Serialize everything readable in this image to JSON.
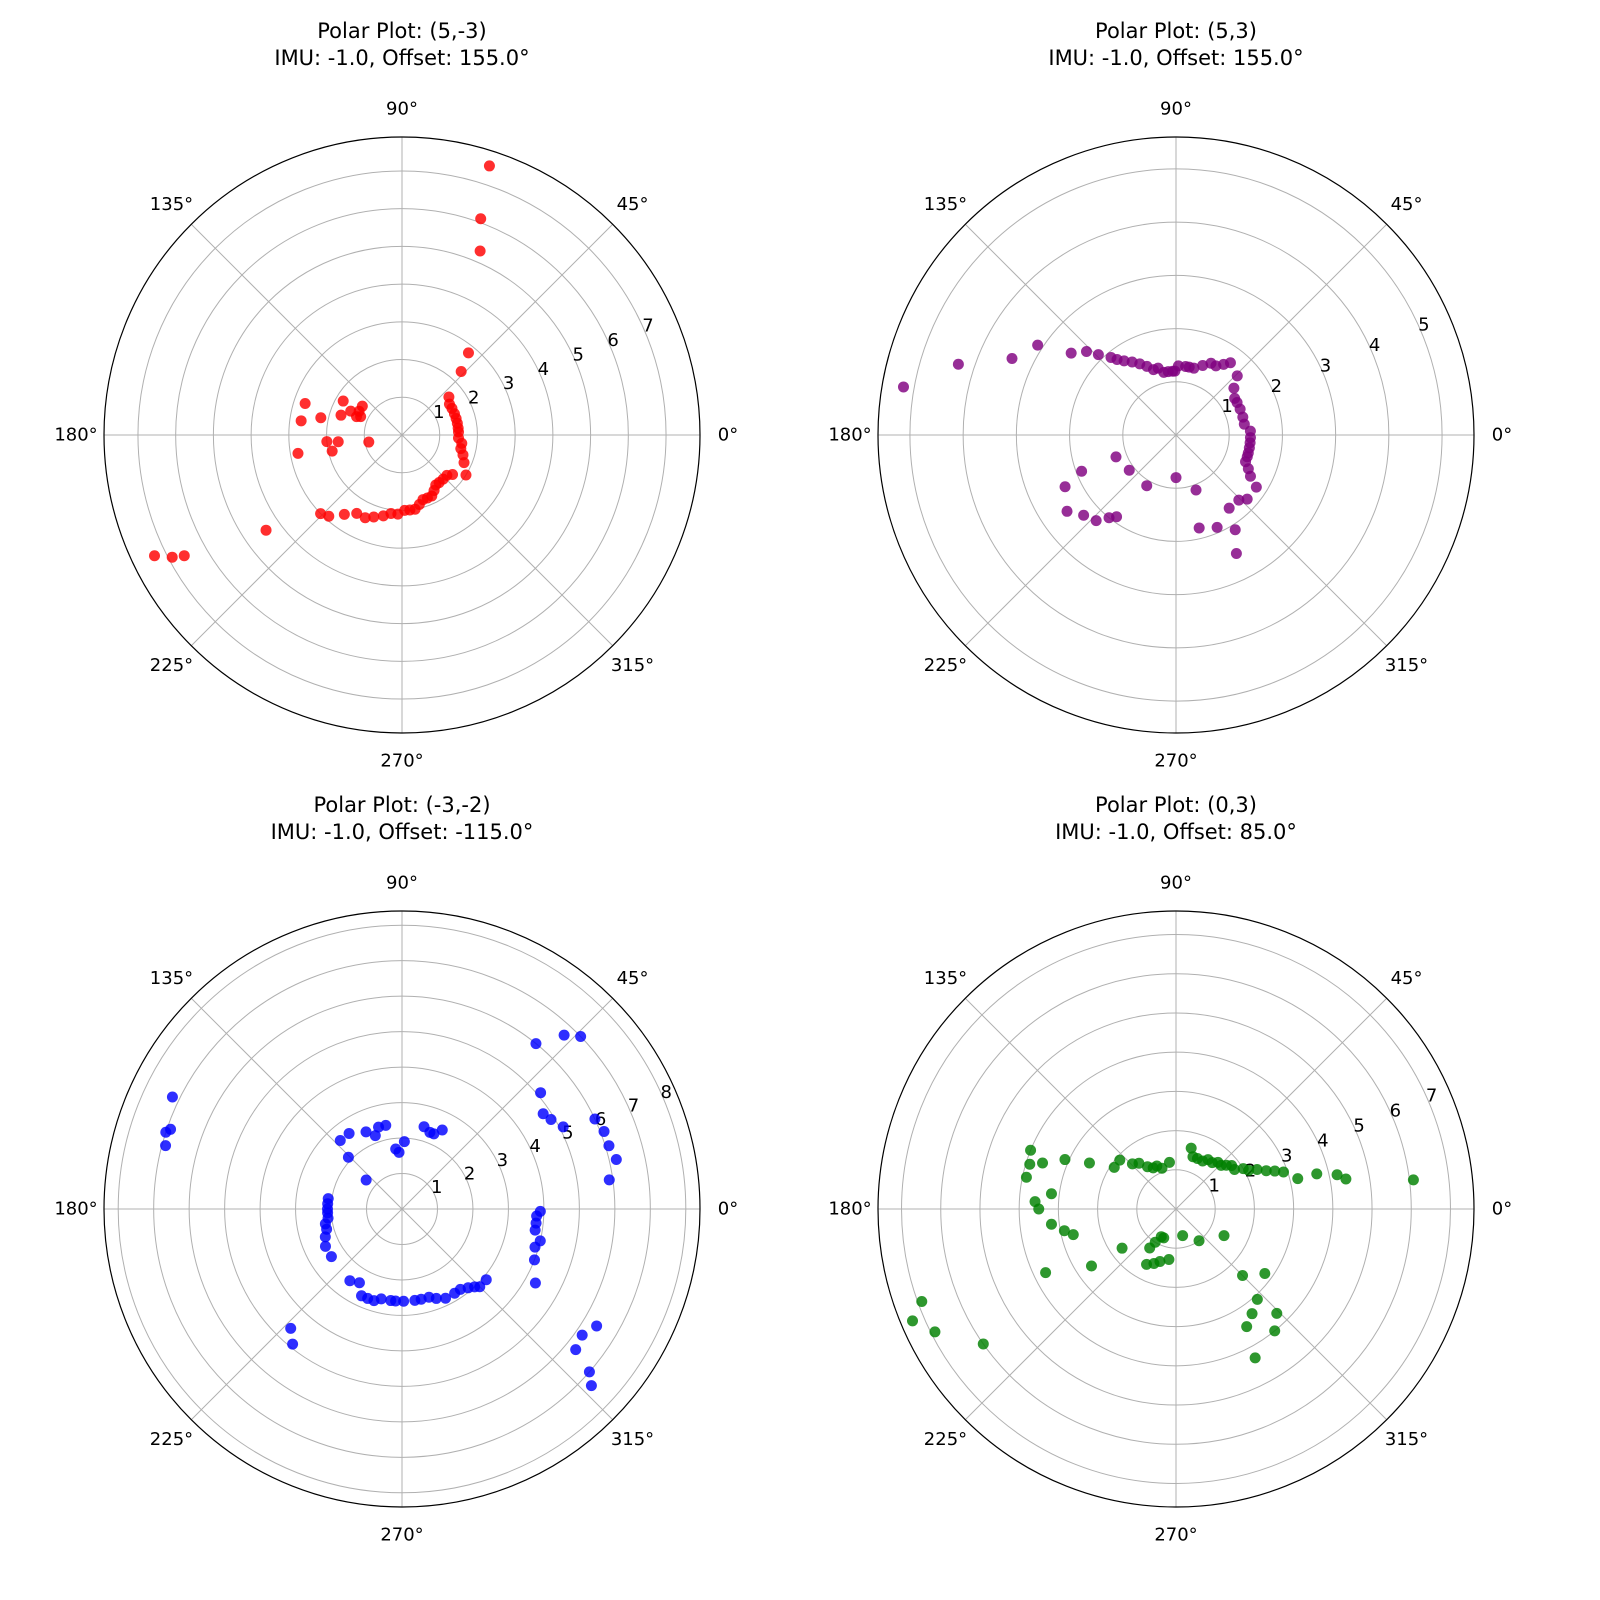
{
  "chart_data": [
    {
      "type": "scatter",
      "projection": "polar",
      "title": "Polar Plot: (5,-3)",
      "subtitle": "IMU: -1.0, Offset: 155.0°",
      "color": "#ff0000",
      "rmax": 7.9,
      "rticks": [
        1,
        2,
        3,
        4,
        5,
        6,
        7
      ],
      "angle_ticks": [
        "0°",
        "45°",
        "90°",
        "135°",
        "180°",
        "225°",
        "270°",
        "315°"
      ],
      "grid": true,
      "points": [
        [
          72,
          7.5
        ],
        [
          70,
          6.1
        ],
        [
          67,
          5.3
        ],
        [
          51,
          2.8
        ],
        [
          47,
          2.3
        ],
        [
          39,
          1.6
        ],
        [
          33,
          1.5
        ],
        [
          28,
          1.5
        ],
        [
          22,
          1.5
        ],
        [
          17,
          1.5
        ],
        [
          12,
          1.5
        ],
        [
          7,
          1.5
        ],
        [
          3,
          1.5
        ],
        [
          -3,
          1.5
        ],
        [
          -8,
          1.6
        ],
        [
          -13,
          1.6
        ],
        [
          -18,
          1.7
        ],
        [
          -24,
          1.8
        ],
        [
          -32,
          2.0
        ],
        [
          -38,
          1.7
        ],
        [
          -42,
          1.6
        ],
        [
          -47,
          1.6
        ],
        [
          -52,
          1.6
        ],
        [
          -56,
          1.6
        ],
        [
          -60,
          1.7
        ],
        [
          -64,
          1.8
        ],
        [
          -68,
          1.8
        ],
        [
          -72,
          1.8
        ],
        [
          -76,
          1.9
        ],
        [
          -80,
          2.0
        ],
        [
          -84,
          2.0
        ],
        [
          -88,
          2.0
        ],
        [
          -93,
          2.1
        ],
        [
          -98,
          2.1
        ],
        [
          -103,
          2.2
        ],
        [
          -109,
          2.3
        ],
        [
          -114,
          2.4
        ],
        [
          -120,
          2.4
        ],
        [
          -126,
          2.6
        ],
        [
          -132,
          2.9
        ],
        [
          -136,
          3.0
        ],
        [
          144,
          1.3
        ],
        [
          151,
          1.3
        ],
        [
          156,
          1.2
        ],
        [
          158,
          1.3
        ],
        [
          155,
          1.5
        ],
        [
          162,
          1.7
        ],
        [
          150,
          1.8
        ],
        [
          162,
          2.7
        ],
        [
          168,
          2.2
        ],
        [
          172,
          2.7
        ],
        [
          186,
          1.7
        ],
        [
          185,
          2.0
        ],
        [
          192,
          0.9
        ],
        [
          193,
          1.9
        ],
        [
          190,
          2.8
        ],
        [
          215,
          4.4
        ],
        [
          206,
          7.3
        ],
        [
          208,
          6.9
        ],
        [
          209,
          6.6
        ]
      ]
    },
    {
      "type": "scatter",
      "projection": "polar",
      "title": "Polar Plot: (5,3)",
      "subtitle": "IMU: -1.0, Offset: 155.0°",
      "color": "#800080",
      "rmax": 5.6,
      "rticks": [
        1,
        2,
        3,
        4,
        5
      ],
      "angle_ticks": [
        "0°",
        "45°",
        "90°",
        "135°",
        "180°",
        "225°",
        "270°",
        "315°"
      ],
      "grid": true,
      "points": [
        [
          53,
          1.7
        ],
        [
          56,
          1.6
        ],
        [
          60,
          1.5
        ],
        [
          64,
          1.5
        ],
        [
          69,
          1.4
        ],
        [
          75,
          1.3
        ],
        [
          79,
          1.3
        ],
        [
          82,
          1.3
        ],
        [
          88,
          1.3
        ],
        [
          91,
          1.2
        ],
        [
          93,
          1.2
        ],
        [
          97,
          1.2
        ],
        [
          101,
          1.2
        ],
        [
          105,
          1.3
        ],
        [
          109,
          1.3
        ],
        [
          113,
          1.4
        ],
        [
          117,
          1.5
        ],
        [
          121,
          1.6
        ],
        [
          125,
          1.7
        ],
        [
          128,
          1.8
        ],
        [
          130,
          1.9
        ],
        [
          134,
          2.1
        ],
        [
          137,
          2.3
        ],
        [
          142,
          2.5
        ],
        [
          147,
          3.1
        ],
        [
          155,
          3.4
        ],
        [
          162,
          4.3
        ],
        [
          170,
          5.2
        ],
        [
          44,
          1.6
        ],
        [
          39,
          1.4
        ],
        [
          32,
          1.3
        ],
        [
          28,
          1.3
        ],
        [
          22,
          1.3
        ],
        [
          15,
          1.3
        ],
        [
          9,
          1.3
        ],
        [
          3,
          1.4
        ],
        [
          -2,
          1.4
        ],
        [
          -6,
          1.4
        ],
        [
          -10,
          1.4
        ],
        [
          -14,
          1.4
        ],
        [
          -17,
          1.4
        ],
        [
          -21,
          1.4
        ],
        [
          -25,
          1.5
        ],
        [
          -29,
          1.6
        ],
        [
          -33,
          1.8
        ],
        [
          -42,
          1.8
        ],
        [
          -46,
          1.7
        ],
        [
          -54,
          1.7
        ],
        [
          -58,
          2.1
        ],
        [
          -63,
          2.5
        ],
        [
          -66,
          1.9
        ],
        [
          -70,
          1.1
        ],
        [
          -76,
          1.8
        ],
        [
          -90,
          0.8
        ],
        [
          -120,
          1.1
        ],
        [
          -126,
          1.9
        ],
        [
          -129,
          2.0
        ],
        [
          -133,
          2.2
        ],
        [
          -139,
          2.3
        ],
        [
          -145,
          2.5
        ],
        [
          -155,
          2.3
        ],
        [
          -143,
          1.1
        ],
        [
          -160,
          1.2
        ],
        [
          -159,
          1.9
        ]
      ]
    },
    {
      "type": "scatter",
      "projection": "polar",
      "title": "Polar Plot: (-3,-2)",
      "subtitle": "IMU: -1.0, Offset: -115.0°",
      "color": "#0000ff",
      "rmax": 8.4,
      "rticks": [
        1,
        2,
        3,
        4,
        5,
        6,
        7,
        8
      ],
      "angle_ticks": [
        "0°",
        "45°",
        "90°",
        "135°",
        "180°",
        "225°",
        "270°",
        "315°"
      ],
      "grid": true,
      "points": [
        [
          44,
          7.0
        ],
        [
          47,
          6.7
        ],
        [
          51,
          6.0
        ],
        [
          40,
          5.1
        ],
        [
          34,
          4.8
        ],
        [
          31,
          4.9
        ],
        [
          27,
          5.1
        ],
        [
          25,
          6.0
        ],
        [
          21,
          6.1
        ],
        [
          17,
          6.1
        ],
        [
          13,
          6.2
        ],
        [
          8,
          5.9
        ],
        [
          75,
          2.4
        ],
        [
          70,
          2.3
        ],
        [
          67,
          2.3
        ],
        [
          63,
          2.5
        ],
        [
          88,
          1.9
        ],
        [
          93,
          1.6
        ],
        [
          96,
          1.7
        ],
        [
          101,
          2.4
        ],
        [
          106,
          2.4
        ],
        [
          110,
          2.2
        ],
        [
          115,
          2.4
        ],
        [
          125,
          2.6
        ],
        [
          132,
          2.6
        ],
        [
          136,
          2.1
        ],
        [
          141,
          1.3
        ],
        [
          -1,
          3.9
        ],
        [
          -3,
          3.8
        ],
        [
          -6,
          3.8
        ],
        [
          -9,
          3.8
        ],
        [
          -13,
          4.0
        ],
        [
          -16,
          3.9
        ],
        [
          -21,
          4.0
        ],
        [
          -29,
          4.3
        ],
        [
          -40,
          3.1
        ],
        [
          -45,
          3.1
        ],
        [
          -47,
          3.0
        ],
        [
          -50,
          2.9
        ],
        [
          -54,
          2.8
        ],
        [
          -58,
          2.8
        ],
        [
          -64,
          2.8
        ],
        [
          -69,
          2.7
        ],
        [
          -73,
          2.6
        ],
        [
          -78,
          2.6
        ],
        [
          -82,
          2.6
        ],
        [
          -89,
          2.6
        ],
        [
          -94,
          2.6
        ],
        [
          -97,
          2.6
        ],
        [
          -103,
          2.6
        ],
        [
          -107,
          2.7
        ],
        [
          -111,
          2.7
        ],
        [
          -115,
          2.7
        ],
        [
          -120,
          2.4
        ],
        [
          -126,
          2.5
        ],
        [
          -146,
          2.4
        ],
        [
          -154,
          2.4
        ],
        [
          -160,
          2.3
        ],
        [
          -165,
          2.2
        ],
        [
          -169,
          2.2
        ],
        [
          -173,
          2.1
        ],
        [
          -177,
          2.1
        ],
        [
          -180,
          2.1
        ],
        [
          -184,
          2.1
        ],
        [
          -188,
          2.1
        ],
        [
          -129,
          4.9
        ],
        [
          -133,
          4.6
        ],
        [
          -43,
          7.3
        ],
        [
          -41,
          7.0
        ],
        [
          -39,
          6.3
        ],
        [
          -35,
          6.2
        ],
        [
          -31,
          6.4
        ],
        [
          154,
          7.2
        ],
        [
          162,
          7.0
        ],
        [
          165,
          6.9
        ],
        [
          161,
          6.9
        ]
      ]
    },
    {
      "type": "scatter",
      "projection": "polar",
      "title": "Polar Plot: (0,3)",
      "subtitle": "IMU: -1.0, Offset: 85.0°",
      "color": "#008000",
      "rmax": 7.6,
      "rticks": [
        1,
        2,
        3,
        4,
        5,
        6,
        7
      ],
      "angle_ticks": [
        "0°",
        "45°",
        "90°",
        "135°",
        "180°",
        "225°",
        "270°",
        "315°"
      ],
      "grid": true,
      "points": [
        [
          76,
          1.6
        ],
        [
          72,
          1.4
        ],
        [
          67,
          1.4
        ],
        [
          61,
          1.4
        ],
        [
          57,
          1.5
        ],
        [
          52,
          1.5
        ],
        [
          48,
          1.6
        ],
        [
          44,
          1.6
        ],
        [
          41,
          1.7
        ],
        [
          38,
          1.8
        ],
        [
          34,
          1.8
        ],
        [
          31,
          2.0
        ],
        [
          28,
          2.1
        ],
        [
          26,
          2.3
        ],
        [
          23,
          2.5
        ],
        [
          21,
          2.7
        ],
        [
          19,
          2.9
        ],
        [
          14,
          3.2
        ],
        [
          14,
          3.7
        ],
        [
          12,
          4.2
        ],
        [
          10,
          4.4
        ],
        [
          7,
          6.1
        ],
        [
          98,
          1.2
        ],
        [
          109,
          1.1
        ],
        [
          114,
          1.2
        ],
        [
          119,
          1.2
        ],
        [
          124,
          1.3
        ],
        [
          129,
          1.5
        ],
        [
          134,
          1.6
        ],
        [
          139,
          1.9
        ],
        [
          146,
          1.9
        ],
        [
          152,
          2.5
        ],
        [
          156,
          3.1
        ],
        [
          161,
          3.6
        ],
        [
          163,
          3.9
        ],
        [
          158,
          4.0
        ],
        [
          168,
          3.9
        ],
        [
          173,
          3.2
        ],
        [
          177,
          3.6
        ],
        [
          180,
          3.5
        ],
        [
          187,
          3.2
        ],
        [
          191,
          2.9
        ],
        [
          194,
          2.7
        ],
        [
          206,
          3.7
        ],
        [
          214,
          2.6
        ],
        [
          216,
          1.7
        ],
        [
          -113,
          0.8
        ],
        [
          -118,
          0.8
        ],
        [
          -122,
          1.0
        ],
        [
          -124,
          1.2
        ],
        [
          -118,
          1.6
        ],
        [
          -112,
          1.5
        ],
        [
          -107,
          1.4
        ],
        [
          -98,
          1.3
        ],
        [
          -76,
          0.7
        ],
        [
          -54,
          1.0
        ],
        [
          -29,
          1.4
        ],
        [
          -45,
          2.4
        ],
        [
          -36,
          2.8
        ],
        [
          -48,
          3.1
        ],
        [
          -46,
          3.7
        ],
        [
          -51,
          4.0
        ],
        [
          -54,
          3.3
        ],
        [
          -59,
          3.5
        ],
        [
          -62,
          4.3
        ],
        [
          -160,
          6.9
        ],
        [
          -153,
          6.9
        ],
        [
          -157,
          7.3
        ],
        [
          -145,
          6.0
        ]
      ]
    }
  ]
}
